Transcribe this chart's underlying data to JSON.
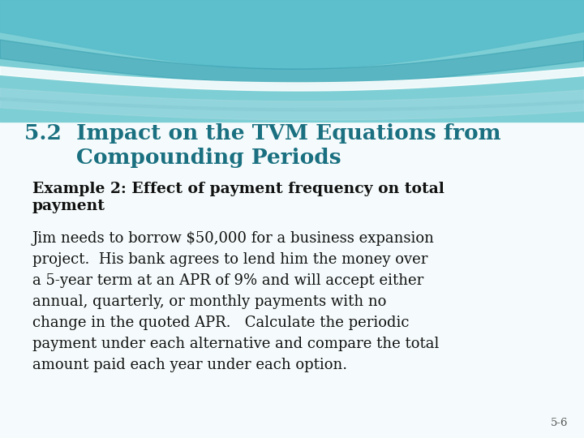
{
  "title_number": "5.2",
  "title_text_line1": "  Impact on the TVM Equations from",
  "title_text_line2": "       Compounding Periods",
  "title_color": "#1a7a8a",
  "subtitle_line1": "Example 2: Effect of payment frequency on total",
  "subtitle_line2": "payment",
  "body_line1": "Jim needs to borrow $50,000 for a business expansion",
  "body_line2": "project.  His bank agrees to lend him the money over",
  "body_line3": "a 5-year term at an APR of 9% and will accept either",
  "body_line4": "annual, quarterly, or monthly payments with no",
  "body_line5": "change in the quoted APR.   Calculate the periodic",
  "body_line6": "payment under each alternative and compare the total",
  "body_line7": "amount paid each year under each option.",
  "slide_number": "5-6",
  "bg_color": "#f0f8fa",
  "wave_main": "#6dcbd6",
  "wave_dark": "#3a9fb0",
  "wave_light": "#a8dde4",
  "wave_white": "#ffffff",
  "title_color_hex": "#1a7080",
  "text_color": "#111111",
  "subtitle_color": "#111111",
  "font_family": "serif"
}
